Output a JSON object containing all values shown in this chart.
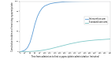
{
  "title": "",
  "xlabel": "Time from admission to first cryoprecipitate administration (minutes)",
  "ylabel": "Cumulative incidence of receiving cryoprecipitate",
  "xlim": [
    0,
    360
  ],
  "ylim": [
    0,
    100
  ],
  "xticks": [
    0,
    20,
    40,
    60,
    80,
    100,
    120,
    140,
    160,
    180,
    200,
    220,
    240,
    260,
    280,
    300,
    320,
    340,
    360
  ],
  "yticks": [
    0,
    20,
    40,
    60,
    80,
    100
  ],
  "intervention_color": "#5b9bd5",
  "standard_color": "#7ec8c8",
  "intervention_label": "Intervention arm",
  "standard_label": "Standard care arm",
  "background_color": "#ffffff",
  "intervention_x": [
    0,
    10,
    20,
    30,
    40,
    50,
    60,
    70,
    80,
    90,
    100,
    110,
    120,
    130,
    140,
    150,
    160,
    180,
    210,
    240,
    300,
    360
  ],
  "intervention_y": [
    0,
    1,
    3,
    8,
    18,
    35,
    55,
    70,
    80,
    87,
    91,
    93,
    95,
    96,
    97,
    97.5,
    98,
    99,
    99.5,
    99.8,
    100,
    100
  ],
  "standard_x": [
    0,
    20,
    40,
    60,
    80,
    100,
    120,
    140,
    160,
    180,
    200,
    220,
    240,
    270,
    300,
    360
  ],
  "standard_y": [
    0,
    0.2,
    0.5,
    1,
    2,
    3.5,
    5.5,
    8,
    10.5,
    13,
    15.5,
    17.5,
    19.5,
    21.5,
    23,
    25
  ]
}
